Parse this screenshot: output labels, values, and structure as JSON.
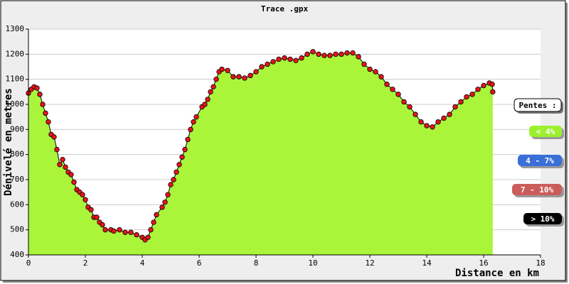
{
  "chart_data": {
    "type": "area",
    "title": "Trace .gpx",
    "xlabel": "Distance en km",
    "ylabel": "Dénivelé en metres",
    "xlim": [
      0,
      18
    ],
    "ylim": [
      400,
      1300
    ],
    "xticks": [
      0,
      2,
      4,
      6,
      8,
      10,
      12,
      14,
      16,
      18
    ],
    "yticks": [
      400,
      500,
      600,
      700,
      800,
      900,
      1000,
      1100,
      1200,
      1300
    ],
    "grid": true,
    "x": [
      0,
      0.1,
      0.2,
      0.3,
      0.4,
      0.5,
      0.6,
      0.7,
      0.8,
      0.9,
      1.0,
      1.1,
      1.2,
      1.3,
      1.4,
      1.5,
      1.6,
      1.7,
      1.8,
      1.9,
      2.0,
      2.1,
      2.2,
      2.3,
      2.4,
      2.5,
      2.6,
      2.7,
      2.9,
      3.0,
      3.2,
      3.4,
      3.6,
      3.8,
      4.0,
      4.1,
      4.2,
      4.3,
      4.4,
      4.5,
      4.7,
      4.8,
      4.9,
      5.0,
      5.1,
      5.2,
      5.3,
      5.4,
      5.5,
      5.6,
      5.7,
      5.8,
      5.9,
      6.1,
      6.2,
      6.3,
      6.4,
      6.5,
      6.6,
      6.7,
      6.8,
      7.0,
      7.2,
      7.4,
      7.6,
      7.8,
      8.0,
      8.2,
      8.4,
      8.6,
      8.8,
      9.0,
      9.2,
      9.4,
      9.6,
      9.8,
      10.0,
      10.2,
      10.4,
      10.6,
      10.8,
      11.0,
      11.2,
      11.4,
      11.6,
      11.8,
      12.0,
      12.2,
      12.4,
      12.6,
      12.8,
      13.0,
      13.2,
      13.4,
      13.6,
      13.8,
      14.0,
      14.2,
      14.4,
      14.6,
      14.8,
      15.0,
      15.2,
      15.4,
      15.6,
      15.8,
      16.0,
      16.2,
      16.3,
      16.32
    ],
    "series": [
      {
        "color": "#aaf53a",
        "marker_color": "#e8141a",
        "values": [
          1045,
          1060,
          1070,
          1065,
          1040,
          1000,
          965,
          930,
          880,
          870,
          820,
          760,
          780,
          750,
          730,
          720,
          690,
          660,
          650,
          640,
          620,
          590,
          580,
          550,
          550,
          530,
          520,
          500,
          500,
          495,
          500,
          490,
          490,
          480,
          470,
          460,
          470,
          500,
          530,
          560,
          590,
          610,
          640,
          680,
          700,
          730,
          760,
          790,
          820,
          860,
          900,
          930,
          950,
          990,
          1000,
          1020,
          1050,
          1070,
          1100,
          1130,
          1140,
          1135,
          1110,
          1110,
          1105,
          1115,
          1130,
          1150,
          1160,
          1170,
          1180,
          1185,
          1180,
          1175,
          1185,
          1200,
          1210,
          1200,
          1195,
          1195,
          1200,
          1200,
          1205,
          1205,
          1190,
          1160,
          1140,
          1130,
          1110,
          1080,
          1060,
          1040,
          1010,
          990,
          960,
          930,
          915,
          910,
          930,
          945,
          960,
          990,
          1010,
          1030,
          1040,
          1060,
          1075,
          1085,
          1080,
          1050
        ]
      }
    ],
    "legend": {
      "title": "Pentes :",
      "items": [
        {
          "label": "< 4%",
          "color": "#9cf02e"
        },
        {
          "label": "4 - 7%",
          "color": "#3a6fd8"
        },
        {
          "label": "7 - 10%",
          "color": "#cc5c5c"
        },
        {
          "label": "> 10%",
          "color": "#000000"
        }
      ]
    }
  }
}
